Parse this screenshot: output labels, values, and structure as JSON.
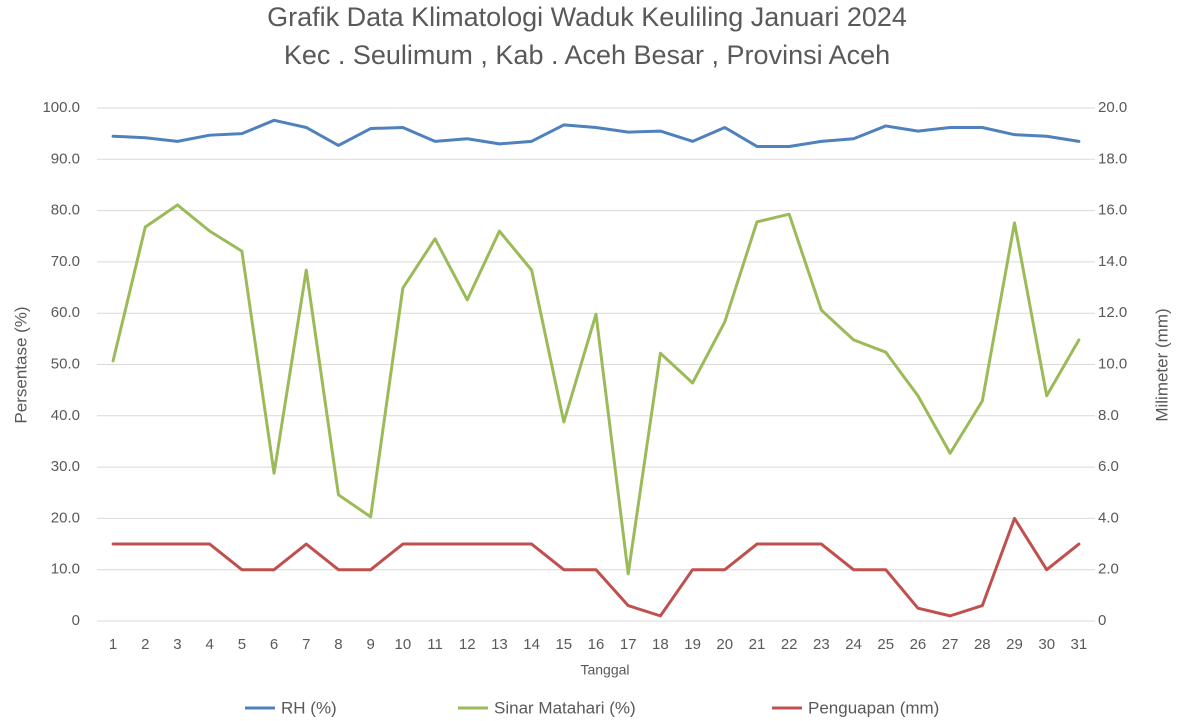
{
  "chart_data": {
    "type": "line",
    "title": "Grafik Data Klimatologi Waduk Keuliling Januari 2024",
    "subtitle": "Kec . Seulimum , Kab . Aceh Besar , Provinsi  Aceh",
    "x_label": "Tanggal",
    "y_label": "Persentase (%)",
    "y2_label": "Milimeter (mm)",
    "categories": [
      "1",
      "2",
      "3",
      "4",
      "5",
      "6",
      "7",
      "8",
      "9",
      "10",
      "11",
      "12",
      "13",
      "14",
      "15",
      "16",
      "17",
      "18",
      "19",
      "20",
      "21",
      "22",
      "23",
      "24",
      "25",
      "26",
      "27",
      "28",
      "29",
      "30",
      "31"
    ],
    "ylim": [
      0,
      100
    ],
    "yticks": [
      0,
      {
        "value": 10,
        "label": "10.0"
      },
      {
        "value": 20,
        "label": "20.0"
      },
      {
        "value": 30,
        "label": "30.0"
      },
      {
        "value": 40,
        "label": "40.0"
      },
      {
        "value": 50,
        "label": "50.0"
      },
      {
        "value": 60,
        "label": "60.0"
      },
      {
        "value": 70,
        "label": "70.0"
      },
      {
        "value": 80,
        "label": "80.0"
      },
      {
        "value": 90,
        "label": "90.0"
      },
      {
        "value": 100,
        "label": "100.0"
      }
    ],
    "y2lim": [
      0,
      20
    ],
    "y2ticks": [
      0,
      {
        "value": 2,
        "label": "2.0"
      },
      {
        "value": 4,
        "label": "4.0"
      },
      {
        "value": 6,
        "label": "6.0"
      },
      {
        "value": 8,
        "label": "8.0"
      },
      {
        "value": 10,
        "label": "10.0"
      },
      {
        "value": 12,
        "label": "12.0"
      },
      {
        "value": 14,
        "label": "14.0"
      },
      {
        "value": 16,
        "label": "16.0"
      },
      {
        "value": 18,
        "label": "18.0"
      },
      {
        "value": 20,
        "label": "20.0"
      }
    ],
    "grid": true,
    "legend": "bottom",
    "series": [
      {
        "name": "RH (%)",
        "color": "#4f81bd",
        "values": [
          94.5,
          94.2,
          93.5,
          94.7,
          95.0,
          97.6,
          96.2,
          92.7,
          96.0,
          96.2,
          93.5,
          94.0,
          93.0,
          93.5,
          96.7,
          96.2,
          95.3,
          95.5,
          93.5,
          96.2,
          92.5,
          92.5,
          93.5,
          94.0,
          96.5,
          95.5,
          96.2,
          96.2,
          94.8,
          94.5,
          93.5
        ]
      },
      {
        "name": "Sinar Matahari (%)",
        "color": "#9bbb59",
        "values": [
          50.7,
          76.8,
          81.1,
          76.0,
          72.1,
          28.8,
          68.4,
          24.6,
          20.3,
          64.9,
          74.5,
          62.6,
          76.0,
          68.4,
          38.8,
          59.8,
          9.2,
          52.2,
          46.4,
          58.3,
          77.8,
          79.3,
          60.6,
          54.8,
          52.4,
          43.9,
          32.7,
          42.9,
          77.6,
          43.9,
          54.8
        ]
      },
      {
        "name": "Penguapan (mm)",
        "color": "#c0504d",
        "axis": "y2",
        "values": [
          3,
          3,
          3,
          3,
          2,
          2,
          3,
          2,
          2,
          3,
          3,
          3,
          3,
          3,
          2,
          2,
          0.6,
          0.2,
          2,
          2,
          3,
          3,
          3,
          2,
          2,
          0.5,
          0.2,
          0.6,
          4,
          2,
          3
        ]
      }
    ]
  }
}
